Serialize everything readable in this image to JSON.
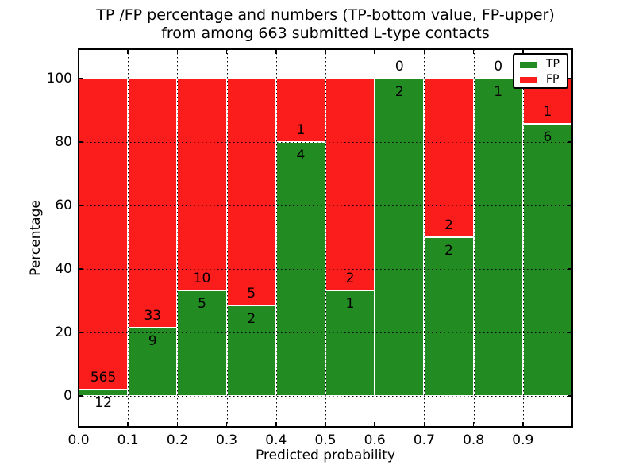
{
  "title": {
    "line1": "TP /FP percentage and numbers (TP-bottom value, FP-upper)",
    "line2": "from among 663 submitted L-type contacts"
  },
  "axes": {
    "xlabel": "Predicted probability",
    "ylabel": "Percentage",
    "x_tick_labels": [
      "0.0",
      "0.1",
      "0.2",
      "0.3",
      "0.4",
      "0.5",
      "0.6",
      "0.7",
      "0.8",
      "0.9"
    ],
    "y_tick_values": [
      0,
      20,
      40,
      60,
      80,
      100
    ],
    "x_range": [
      0.0,
      1.0
    ],
    "y_range_percent": [
      -9.75,
      109.25
    ],
    "grid_style": "dotted"
  },
  "legend": {
    "position": "upper right",
    "items": [
      {
        "label": "TP",
        "color": "#228b22"
      },
      {
        "label": "FP",
        "color": "#fb1c1c"
      }
    ]
  },
  "colors": {
    "tp_green": "#228b22",
    "fp_red": "#fb1c1c",
    "bar_edge": "#ffffff",
    "grid": "#000000",
    "background": "#ffffff"
  },
  "chart_data": {
    "type": "bar",
    "stacked": true,
    "normalization": "each bar stacked to 100 percent",
    "title": "TP /FP percentage and numbers (TP-bottom value, FP-upper) from among 663 submitted L-type contacts",
    "xlabel": "Predicted probability",
    "ylabel": "Percentage",
    "total_contacts": 663,
    "bin_edges": [
      0.0,
      0.1,
      0.2,
      0.3,
      0.4,
      0.5,
      0.6,
      0.7,
      0.8,
      0.9,
      1.0
    ],
    "categories": [
      "0.0-0.1",
      "0.1-0.2",
      "0.2-0.3",
      "0.3-0.4",
      "0.4-0.5",
      "0.5-0.6",
      "0.6-0.7",
      "0.7-0.8",
      "0.8-0.9",
      "0.9-1.0"
    ],
    "series": [
      {
        "name": "TP",
        "color": "#228b22",
        "values": [
          12,
          9,
          5,
          2,
          4,
          1,
          2,
          2,
          1,
          6
        ]
      },
      {
        "name": "FP",
        "color": "#fb1c1c",
        "values": [
          565,
          33,
          10,
          5,
          1,
          2,
          0,
          2,
          0,
          1
        ]
      }
    ],
    "tp_percent_of_bar": [
      2.08,
      21.43,
      33.33,
      28.57,
      80.0,
      33.33,
      100.0,
      50.0,
      100.0,
      85.71
    ],
    "ylim": [
      -9.75,
      109.25
    ],
    "legend_position": "upper right",
    "grid": "dotted"
  }
}
